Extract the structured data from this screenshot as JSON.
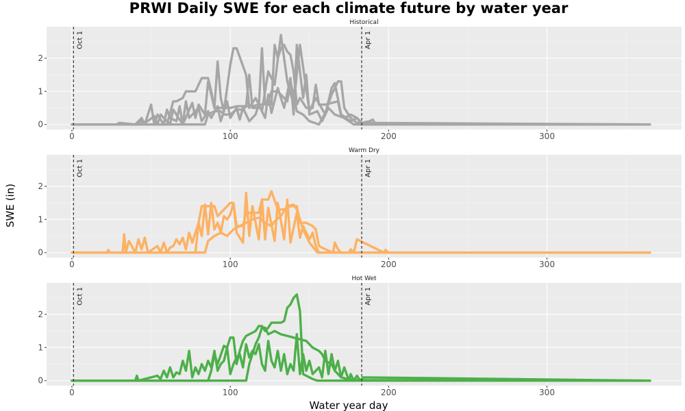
{
  "chart_data": {
    "type": "line",
    "title": "PRWI Daily SWE for each climate future by water year",
    "xlabel": "Water year day",
    "ylabel": "SWE (in)",
    "xlim": [
      -16,
      385
    ],
    "xticks": [
      0,
      100,
      200,
      300
    ],
    "ylim": [
      -0.15,
      2.95
    ],
    "yticks": [
      0,
      1,
      2
    ],
    "grid": true,
    "vlines": [
      {
        "x": 1,
        "label": "Oct 1"
      },
      {
        "x": 183,
        "label": "Apr 1"
      }
    ],
    "panels": [
      {
        "title": "Historical",
        "color": "#a6a6a6",
        "series": [
          {
            "x": [
              0,
              42,
              44,
              46,
              50,
              52,
              54,
              58,
              60,
              62,
              66,
              68,
              70,
              76,
              78,
              80,
              84,
              86,
              90,
              92,
              94,
              96,
              100,
              102,
              104,
              110,
              112,
              116,
              120,
              124,
              128,
              132,
              136,
              140,
              144,
              150,
              154,
              160,
              164,
              166,
              170,
              176,
              180,
              183,
              188,
              190,
              192,
              365
            ],
            "y": [
              0,
              0,
              0.2,
              0,
              0.6,
              0,
              0.3,
              0,
              0.45,
              0.2,
              0.1,
              0.55,
              0,
              0.65,
              0.2,
              0.6,
              0.3,
              1.3,
              0.5,
              1.9,
              0.8,
              0.4,
              1.8,
              2.3,
              2.3,
              1.5,
              0.5,
              0.8,
              0.4,
              1.6,
              1.2,
              2.7,
              1.3,
              0.6,
              2.4,
              0.4,
              0.8,
              0.3,
              1.1,
              1.25,
              0.3,
              0.1,
              0.2,
              0.05,
              0.1,
              0.15,
              0,
              0
            ]
          },
          {
            "x": [
              0,
              60,
              64,
              66,
              70,
              72,
              78,
              82,
              84,
              86,
              88,
              90,
              92,
              94,
              98,
              100,
              104,
              110,
              112,
              114,
              118,
              120,
              122,
              126,
              128,
              130,
              132,
              134,
              136,
              138,
              140,
              142,
              144,
              148,
              152,
              154,
              156,
              158,
              160,
              168,
              170,
              175,
              178,
              365
            ],
            "y": [
              0,
              0,
              0.7,
              0.7,
              0.8,
              1.0,
              1.0,
              1.4,
              1.4,
              1.4,
              1.0,
              0.5,
              0.5,
              0.5,
              0.5,
              0.5,
              0.55,
              0.55,
              1.5,
              0.5,
              0.5,
              2.3,
              0.6,
              0.6,
              2.4,
              2.0,
              2.3,
              2.4,
              2.2,
              2.1,
              1.6,
              0.6,
              0.8,
              0.5,
              0.5,
              1.2,
              0.6,
              0.6,
              0.6,
              0.7,
              0.25,
              0.1,
              0,
              0
            ]
          },
          {
            "x": [
              0,
              84,
              86,
              90,
              94,
              96,
              100,
              104,
              108,
              110,
              114,
              118,
              120,
              124,
              126,
              130,
              134,
              136,
              138,
              142,
              146,
              150,
              156,
              160,
              164,
              168,
              170,
              172,
              176,
              180,
              365
            ],
            "y": [
              0,
              0,
              0.3,
              0.4,
              0.4,
              0.3,
              0.3,
              0.45,
              0.45,
              0.55,
              0.55,
              0.6,
              0.6,
              0.7,
              1.0,
              1.0,
              0.8,
              0.7,
              1.3,
              0.4,
              0.3,
              0.1,
              0,
              0.35,
              0.9,
              1.3,
              1.3,
              0.5,
              0.2,
              0.05,
              0
            ]
          },
          {
            "x": [
              0,
              28,
              30,
              40,
              43,
              45,
              52,
              54,
              56,
              62,
              64,
              70,
              72,
              74,
              80,
              82,
              86,
              88,
              92,
              94,
              98,
              100,
              104,
              106,
              108,
              112,
              116,
              118,
              122,
              124,
              126,
              130,
              134,
              138,
              140,
              142,
              146,
              148,
              150,
              155,
              158,
              162,
              166,
              172,
              176,
              180,
              183,
              365
            ],
            "y": [
              0,
              0,
              0.05,
              0,
              0.15,
              0,
              0.25,
              0,
              0.3,
              0,
              0.45,
              0,
              0.7,
              0.2,
              0.5,
              0.1,
              0.4,
              0.2,
              0.55,
              0.1,
              0.7,
              0.2,
              0.5,
              0.15,
              0.5,
              0.1,
              0.3,
              0.6,
              0.2,
              0.9,
              0.35,
              1.1,
              0.5,
              1.4,
              0.3,
              2.4,
              0.8,
              1.5,
              0.3,
              0.4,
              0.1,
              0.5,
              0.3,
              0.2,
              0.3,
              0.2,
              0,
              0
            ]
          }
        ]
      },
      {
        "title": "Warm Dry",
        "color": "#fdb162",
        "series": [
          {
            "x": [
              0,
              22,
              23,
              24,
              32,
              33,
              34,
              36,
              40,
              42,
              44,
              46,
              48,
              54,
              56,
              58,
              60,
              62,
              64,
              66,
              68,
              70,
              72,
              74,
              76,
              80,
              82,
              84,
              86,
              88,
              90,
              92,
              94,
              96,
              98,
              100,
              102,
              104,
              108,
              110,
              112,
              114,
              118,
              120,
              122,
              124,
              128,
              130,
              134,
              136,
              138,
              142,
              144,
              146,
              150,
              152,
              154,
              156,
              165,
              166,
              168,
              170,
              175,
              176,
              178,
              180,
              197,
              198,
              200,
              365
            ],
            "y": [
              0,
              0,
              0.08,
              0,
              0,
              0.55,
              0,
              0.35,
              0,
              0.4,
              0.1,
              0.45,
              0,
              0.2,
              0,
              0.3,
              0,
              0.15,
              0.2,
              0.4,
              0.25,
              0.45,
              0.1,
              0.6,
              0.3,
              0.9,
              0.5,
              1.45,
              0.55,
              1.5,
              0.7,
              0.9,
              0.6,
              1.1,
              1.0,
              1.15,
              1.5,
              0.6,
              0.3,
              1.8,
              0.5,
              1.4,
              0.4,
              1.6,
              0.4,
              1.35,
              0.35,
              1.5,
              0.4,
              1.6,
              0.3,
              1.2,
              0.45,
              0.8,
              0.4,
              0.6,
              0.2,
              0,
              0,
              0.3,
              0.1,
              0,
              0,
              0.1,
              0,
              0.4,
              0,
              0.08,
              0,
              0
            ]
          },
          {
            "x": [
              0,
              78,
              80,
              82,
              90,
              92,
              100,
              102,
              104,
              108,
              110,
              114,
              118,
              120,
              124,
              126,
              130,
              134,
              138,
              142,
              144,
              148,
              152,
              154,
              156,
              160,
              165,
              365
            ],
            "y": [
              0,
              0,
              0.9,
              1.4,
              1.4,
              1.1,
              1.5,
              1.5,
              0.8,
              0.8,
              1.2,
              1.2,
              1.2,
              1.6,
              1.6,
              1.85,
              1.3,
              1.3,
              1.4,
              1.4,
              0.9,
              0.9,
              0.8,
              0.7,
              0.2,
              0.1,
              0,
              0
            ]
          },
          {
            "x": [
              0,
              84,
              86,
              90,
              94,
              98,
              102,
              106,
              110,
              114,
              118,
              122,
              126,
              128,
              132,
              136,
              140,
              142,
              146,
              150,
              155,
              365
            ],
            "y": [
              0,
              0,
              0.35,
              0.5,
              0.6,
              0.5,
              0.7,
              0.8,
              0.9,
              1.0,
              1.05,
              0.9,
              0.8,
              0.95,
              1.1,
              1.4,
              1.45,
              1.3,
              0.7,
              0.3,
              0,
              0
            ]
          }
        ]
      },
      {
        "title": "Hot Wet",
        "color": "#4daf4a",
        "series": [
          {
            "x": [
              0,
              40,
              41,
              42,
              54,
              56,
              58,
              60,
              62,
              64,
              66,
              68,
              70,
              72,
              74,
              76,
              78,
              80,
              82,
              84,
              86,
              88,
              90,
              92,
              94,
              96,
              98,
              100,
              102,
              104,
              106,
              108,
              110,
              112,
              114,
              116,
              118,
              120,
              122,
              124,
              126,
              128,
              130,
              132,
              134,
              136,
              138,
              140,
              142,
              144,
              146,
              148,
              150,
              152,
              156,
              158,
              160,
              162,
              164,
              166,
              168,
              170,
              172,
              175,
              176,
              178,
              180,
              182,
              184,
              365
            ],
            "y": [
              0,
              0,
              0.15,
              0,
              0.15,
              0.05,
              0.3,
              0.1,
              0.4,
              0.1,
              0.25,
              0.2,
              0.6,
              0.3,
              0.9,
              0.1,
              0.4,
              0.2,
              0.5,
              0.3,
              0.6,
              0.4,
              0.9,
              0.3,
              0.5,
              0.6,
              1.0,
              0.2,
              0.5,
              0.7,
              0.8,
              0.4,
              1.1,
              0.7,
              0.9,
              0.8,
              1.1,
              0.5,
              0.3,
              1.2,
              0.6,
              0.4,
              0.9,
              0.3,
              0.8,
              0.2,
              0.5,
              0.3,
              1.4,
              0.2,
              0.8,
              0.3,
              0.6,
              0.2,
              0.4,
              0.1,
              0.9,
              0.2,
              0.8,
              0.3,
              0.6,
              0.1,
              0.4,
              0,
              0.2,
              0,
              0.15,
              0,
              0.1,
              0
            ]
          },
          {
            "x": [
              0,
              86,
              88,
              90,
              92,
              96,
              98,
              100,
              102,
              104,
              106,
              108,
              110,
              112,
              114,
              116,
              118,
              120,
              122,
              124,
              126,
              128,
              130,
              132,
              134,
              136,
              138,
              140,
              142,
              144,
              146,
              150,
              152,
              155,
              365
            ],
            "y": [
              0,
              0,
              0.3,
              0.8,
              0.5,
              1.05,
              1.0,
              1.3,
              1.3,
              0.5,
              0.9,
              1.2,
              1.35,
              1.4,
              1.45,
              1.5,
              1.65,
              1.65,
              1.5,
              1.6,
              1.75,
              1.75,
              1.75,
              1.75,
              1.8,
              2.2,
              2.3,
              2.5,
              2.6,
              2.1,
              0.2,
              0.1,
              0.05,
              0,
              0
            ]
          },
          {
            "x": [
              0,
              110,
              112,
              116,
              118,
              120,
              122,
              124,
              126,
              128,
              132,
              136,
              140,
              144,
              148,
              152,
              156,
              158,
              160,
              164,
              166,
              168,
              170,
              174,
              178,
              365
            ],
            "y": [
              0,
              0,
              0.5,
              1.1,
              1.3,
              1.6,
              1.6,
              1.4,
              1.45,
              1.5,
              1.4,
              1.35,
              1.3,
              1.25,
              1.2,
              1.0,
              0.9,
              0.8,
              0.6,
              0.5,
              0.3,
              0.2,
              0.1,
              0.05,
              0.02,
              0
            ]
          }
        ]
      }
    ]
  }
}
